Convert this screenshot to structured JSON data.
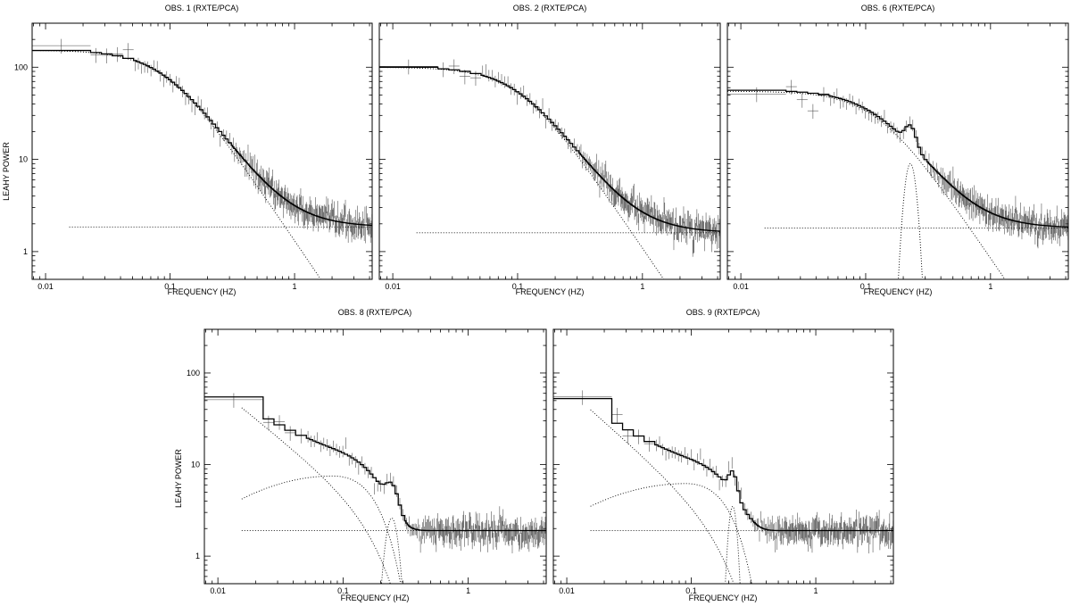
{
  "figure": {
    "ylabel": "LEAHY POWER",
    "xlabel": "FREQUENCY (HZ)"
  },
  "chart_data": [
    {
      "type": "scatter",
      "title": "OBS. 1 (RXTE/PCA)",
      "xlabel": "FREQUENCY (HZ)",
      "ylabel": "LEAHY POWER",
      "xscale": "log",
      "yscale": "log",
      "xlim": [
        0.0078,
        4.2
      ],
      "ylim": [
        0.5,
        300
      ],
      "xticks": [
        0.01,
        0.1,
        1
      ],
      "xticklabels": [
        "0.01",
        "0.1",
        "1"
      ],
      "yticks": [
        1,
        10,
        100
      ],
      "yticklabels": [
        "1",
        "10",
        "100"
      ],
      "model": {
        "components": [
          {
            "kind": "zero-centred-lorentzian",
            "norm": 153,
            "width": 0.093
          },
          {
            "kind": "constant",
            "value": 1.85,
            "xstart": 0.0155
          }
        ]
      },
      "noise_level": 1.85
    },
    {
      "type": "scatter",
      "title": "OBS. 2 (RXTE/PCA)",
      "xlabel": "FREQUENCY (HZ)",
      "ylabel": "",
      "xscale": "log",
      "yscale": "log",
      "xlim": [
        0.0078,
        4.2
      ],
      "ylim": [
        0.5,
        300
      ],
      "xticks": [
        0.01,
        0.1,
        1
      ],
      "xticklabels": [
        "0.01",
        "0.1",
        "1"
      ],
      "yticks": [
        1,
        10,
        100
      ],
      "yticklabels": [
        "",
        "",
        ""
      ],
      "model": {
        "components": [
          {
            "kind": "zero-centred-lorentzian",
            "norm": 100,
            "width": 0.105
          },
          {
            "kind": "constant",
            "value": 1.6,
            "xstart": 0.0155
          }
        ]
      },
      "noise_level": 1.6
    },
    {
      "type": "scatter",
      "title": "OBS. 6 (RXTE/PCA)",
      "xlabel": "FREQUENCY (HZ)",
      "ylabel": "",
      "xscale": "log",
      "yscale": "log",
      "xlim": [
        0.0078,
        4.2
      ],
      "ylim": [
        0.5,
        300
      ],
      "xticks": [
        0.01,
        0.1,
        1
      ],
      "xticklabels": [
        "0.01",
        "0.1",
        "1"
      ],
      "yticks": [
        1,
        10,
        100
      ],
      "yticklabels": [
        "",
        "",
        ""
      ],
      "model": {
        "components": [
          {
            "kind": "zero-centred-lorentzian",
            "norm": 55,
            "width": 0.125
          },
          {
            "kind": "gaussian-log",
            "center": 0.228,
            "amp": 9,
            "sigma": 0.04
          },
          {
            "kind": "constant",
            "value": 1.8,
            "xstart": 0.0155
          }
        ]
      },
      "noise_level": 1.8
    },
    {
      "type": "scatter",
      "title": "OBS. 8 (RXTE/PCA)",
      "xlabel": "FREQUENCY (HZ)",
      "ylabel": "LEAHY POWER",
      "xscale": "log",
      "yscale": "log",
      "xlim": [
        0.0078,
        4.2
      ],
      "ylim": [
        0.5,
        300
      ],
      "xticks": [
        0.01,
        0.1,
        1
      ],
      "xticklabels": [
        "0.01",
        "0.1",
        "1"
      ],
      "yticks": [
        1,
        10,
        100
      ],
      "yticklabels": [
        "1",
        "10",
        "100"
      ],
      "model": {
        "components": [
          {
            "kind": "power-law-falloff",
            "norm": 42,
            "x0": 0.0155,
            "index": 1.1,
            "cutoff": 0.2
          },
          {
            "kind": "broad-hump-log",
            "center": 0.083,
            "peak": 7.5,
            "base": 4.2,
            "xstart": 0.0155
          },
          {
            "kind": "gaussian-log",
            "center": 0.245,
            "amp": 2.6,
            "sigma": 0.045
          },
          {
            "kind": "constant",
            "value": 1.9,
            "xstart": 0.0155
          }
        ]
      },
      "noise_level": 1.9
    },
    {
      "type": "scatter",
      "title": "OBS. 9 (RXTE/PCA)",
      "xlabel": "FREQUENCY (HZ)",
      "ylabel": "",
      "xscale": "log",
      "yscale": "log",
      "xlim": [
        0.0078,
        4.2
      ],
      "ylim": [
        0.5,
        300
      ],
      "xticks": [
        0.01,
        0.1,
        1
      ],
      "xticklabels": [
        "0.01",
        "0.1",
        "1"
      ],
      "yticks": [
        1,
        10,
        100
      ],
      "yticklabels": [
        "",
        "",
        ""
      ],
      "model": {
        "components": [
          {
            "kind": "power-law-falloff",
            "norm": 40,
            "x0": 0.0155,
            "index": 1.2,
            "cutoff": 0.2
          },
          {
            "kind": "broad-hump-log",
            "center": 0.09,
            "peak": 6.2,
            "base": 3.5,
            "xstart": 0.0155
          },
          {
            "kind": "gaussian-log",
            "center": 0.215,
            "amp": 3.5,
            "sigma": 0.03
          },
          {
            "kind": "constant",
            "value": 1.9,
            "xstart": 0.0155
          }
        ]
      },
      "noise_level": 1.9
    }
  ]
}
